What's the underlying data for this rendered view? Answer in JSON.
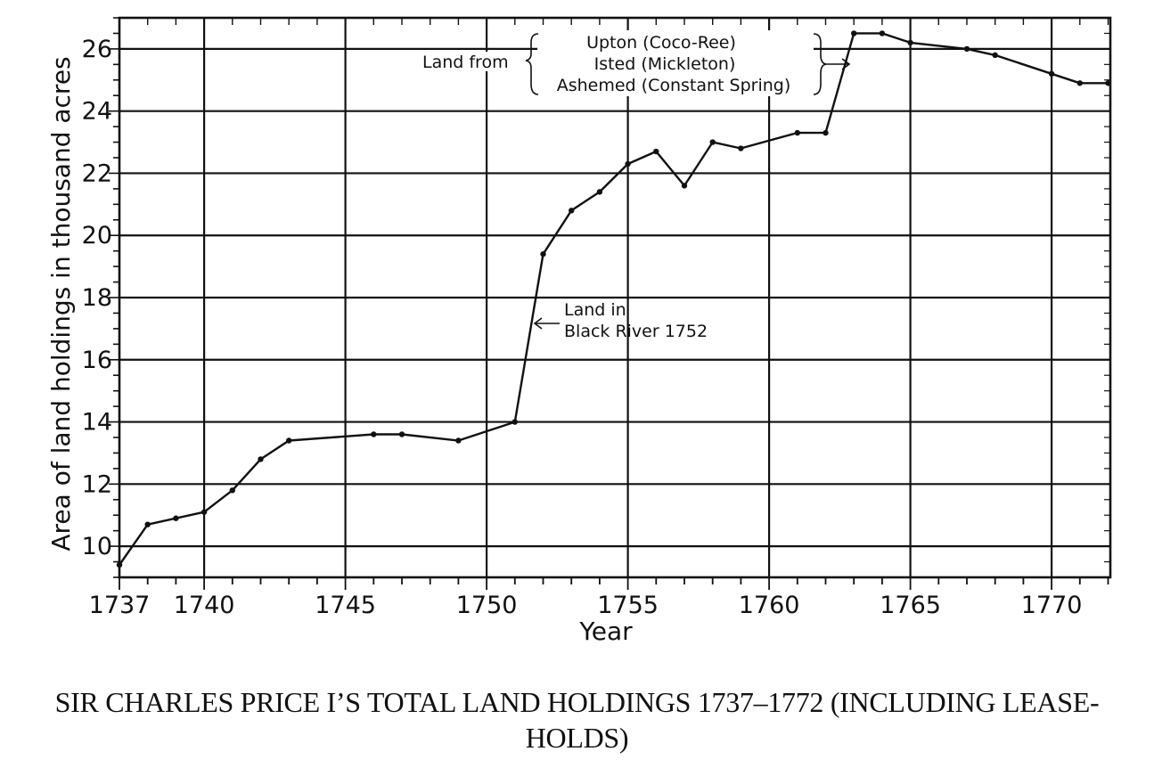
{
  "chart_data": {
    "type": "line",
    "title": "SIR CHARLES PRICE I’S TOTAL LAND HOLDINGS 1737–1772 (INCLUDING LEASE-HOLDS)",
    "title_lines": [
      "SIR CHARLES PRICE I’S TOTAL LAND HOLDINGS 1737–1772 (INCLUDING LEASE-",
      "HOLDS)"
    ],
    "xlabel": "Year",
    "ylabel": "Area of land holdings in thousand acres",
    "xlim": [
      1737,
      1772
    ],
    "ylim": [
      9,
      27
    ],
    "grid": true,
    "x_ticks": [
      1737,
      1740,
      1745,
      1750,
      1755,
      1760,
      1765,
      1770
    ],
    "x_tick_labels": [
      "1737",
      "1740",
      "1745",
      "1750",
      "1755",
      "1760",
      "1765",
      "1770"
    ],
    "y_ticks": [
      10,
      12,
      14,
      16,
      18,
      20,
      22,
      24,
      26
    ],
    "y_tick_labels": [
      "10",
      "12",
      "14",
      "16",
      "18",
      "20",
      "22",
      "24",
      "26"
    ],
    "series": [
      {
        "points": [
          [
            1737,
            9.4
          ],
          [
            1738,
            10.7
          ],
          [
            1739,
            10.9
          ],
          [
            1740,
            11.1
          ],
          [
            1741,
            11.8
          ],
          [
            1742,
            12.8
          ],
          [
            1743,
            13.4
          ],
          [
            1746,
            13.6
          ],
          [
            1747,
            13.6
          ],
          [
            1749,
            13.4
          ],
          [
            1751,
            14.0
          ],
          [
            1752,
            19.4
          ],
          [
            1753,
            20.8
          ],
          [
            1754,
            21.4
          ],
          [
            1755,
            22.3
          ],
          [
            1756,
            22.7
          ],
          [
            1757,
            21.6
          ],
          [
            1758,
            23.0
          ],
          [
            1759,
            22.8
          ],
          [
            1761,
            23.3
          ],
          [
            1762,
            23.3
          ],
          [
            1763,
            26.5
          ],
          [
            1764,
            26.5
          ],
          [
            1765,
            26.2
          ],
          [
            1767,
            26.0
          ],
          [
            1768,
            25.8
          ],
          [
            1770,
            25.2
          ],
          [
            1771,
            24.9
          ],
          [
            1772,
            24.9
          ]
        ]
      }
    ],
    "annotations": {
      "black_river": [
        "Land in",
        "Black River 1752"
      ],
      "land_from": "Land from",
      "land_from_items": [
        "Upton (Coco-Ree)",
        "Isted (Mickleton)",
        "Ashemed (Constant Spring)"
      ]
    }
  }
}
